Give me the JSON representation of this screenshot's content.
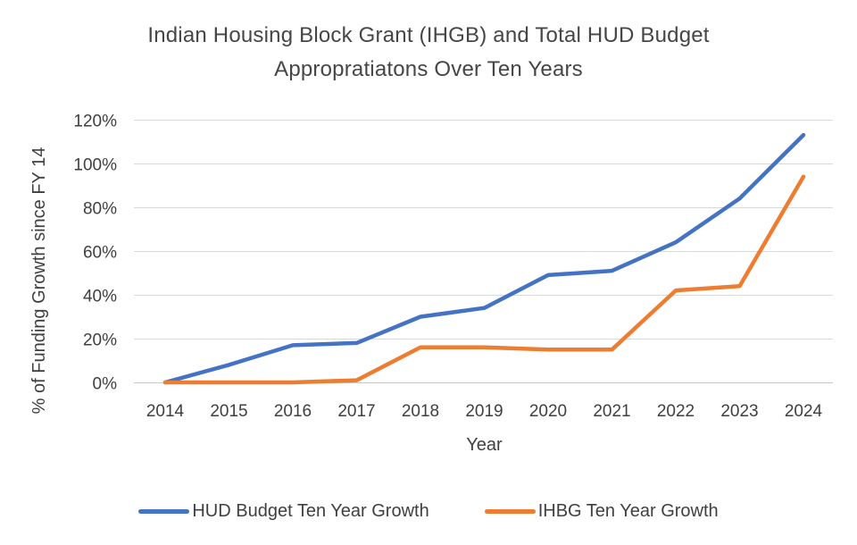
{
  "title": {
    "line1": "Indian Housing Block Grant (IHGB) and Total HUD Budget",
    "line2": "Appropratiatons Over Ten Years"
  },
  "chart_data": {
    "type": "line",
    "x": [
      "2014",
      "2015",
      "2016",
      "2017",
      "2018",
      "2019",
      "2020",
      "2021",
      "2022",
      "2023",
      "2024"
    ],
    "series": [
      {
        "name": "HUD Budget Ten Year Growth",
        "color": "#4472C4",
        "values": [
          0,
          8,
          17,
          18,
          30,
          34,
          49,
          51,
          64,
          84,
          113
        ]
      },
      {
        "name": "IHBG Ten Year Growth",
        "color": "#ED7D31",
        "values": [
          0,
          0,
          0,
          1,
          16,
          16,
          15,
          15,
          42,
          44,
          94
        ]
      }
    ],
    "xlabel": "Year",
    "ylabel": "% of Funding Growth since FY 14",
    "ylim": [
      0,
      120
    ],
    "ytick_step": 20,
    "ytick_labels": [
      "0%",
      "20%",
      "40%",
      "60%",
      "80%",
      "100%",
      "120%"
    ],
    "grid": true,
    "legend_position": "bottom"
  },
  "colors": {
    "background": "#ffffff",
    "gridline": "#d9d9d9",
    "axis_line": "#c9c9c9",
    "text": "#3f3f3f",
    "title_text": "#464646"
  }
}
